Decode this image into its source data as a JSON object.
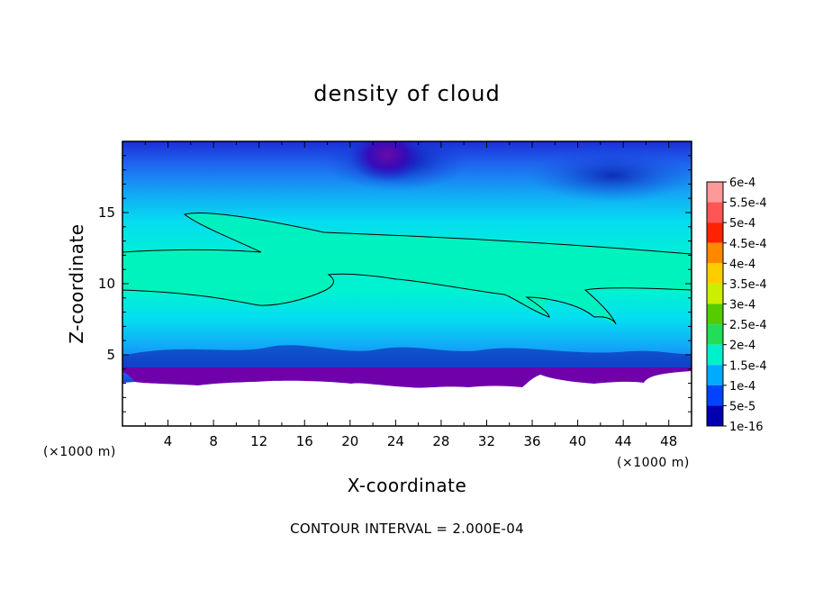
{
  "chart_data": {
    "type": "heatmap",
    "title": "density of cloud",
    "xlabel": "X-coordinate",
    "ylabel": "Z-coordinate",
    "x_unit": "(×1000 m)",
    "x_ticks": [
      4,
      8,
      12,
      16,
      20,
      24,
      28,
      32,
      36,
      40,
      44,
      48
    ],
    "y_ticks": [
      5,
      10,
      15
    ],
    "xlim": [
      0,
      50
    ],
    "ylim": [
      0,
      20
    ],
    "colorbar": {
      "labels": [
        "6e-4",
        "5.5e-4",
        "5e-4",
        "4.5e-4",
        "4e-4",
        "3.5e-4",
        "3e-4",
        "2.5e-4",
        "2e-4",
        "1.5e-4",
        "1e-4",
        "5e-5",
        "1e-16"
      ],
      "colors": [
        "#ff9999",
        "#ff5555",
        "#ff2200",
        "#ff8800",
        "#ffcc00",
        "#ccee00",
        "#55cc00",
        "#22dd55",
        "#00f0cc",
        "#00aaff",
        "#0044ff",
        "#0000b0",
        "#7700aa"
      ]
    },
    "contour_interval": "CONTOUR INTERVAL = 2.000E-04",
    "grid": false
  }
}
